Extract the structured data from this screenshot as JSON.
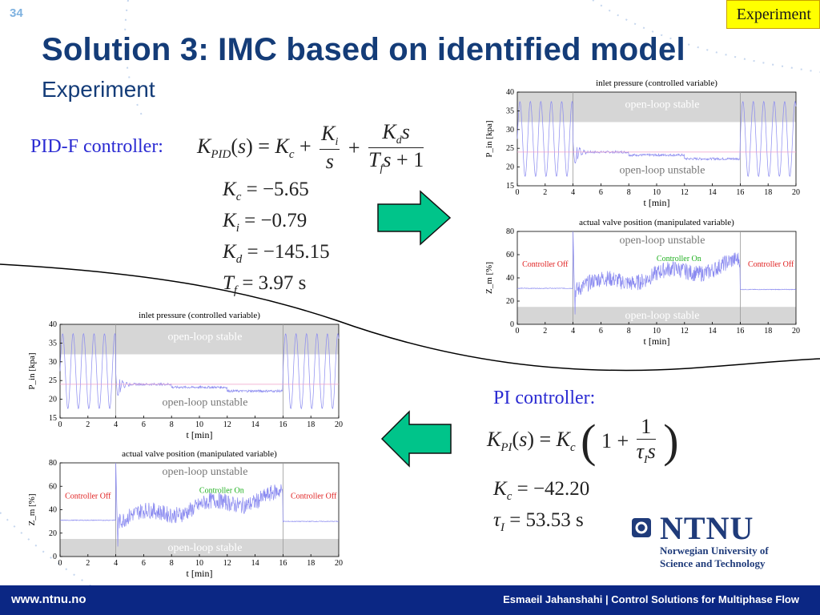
{
  "slide": {
    "number": "34",
    "tag": "Experiment",
    "title": "Solution 3: IMC based on identified model",
    "subtitle": "Experiment"
  },
  "pidf": {
    "label": "PID-F controller:",
    "formula_lhs": "K",
    "formula_lhs_sub": "PID",
    "params": [
      {
        "name": "K",
        "sub": "c",
        "value": "= −5.65"
      },
      {
        "name": "K",
        "sub": "i",
        "value": "= −0.79"
      },
      {
        "name": "K",
        "sub": "d",
        "value": "= −145.15"
      },
      {
        "name": "T",
        "sub": "f",
        "value": "= 3.97 s"
      }
    ]
  },
  "pi": {
    "label": "PI controller:",
    "params": [
      {
        "name": "K",
        "sub": "c",
        "value": "= −42.20"
      },
      {
        "name": "τ",
        "sub": "I",
        "value": "= 53.53 s"
      }
    ]
  },
  "logo": {
    "name": "NTNU",
    "line1": "Norwegian University of",
    "line2": "Science and Technology",
    "color": "#1f3b7a"
  },
  "footer": {
    "url": "www.ntnu.no",
    "right": "Esmaeil Jahanshahi  |  Control Solutions for Multiphase Flow"
  },
  "colors": {
    "title": "#143c78",
    "arrow_fill": "#00c48a",
    "controller_off": "#e02020",
    "controller_on": "#20b020",
    "band": "#d6d6d6",
    "series": "#8a8af0",
    "setpoint": "#f0a0c8"
  },
  "chart_data": [
    {
      "type": "line",
      "panel": "PID-F pressure",
      "title": "inlet pressure (controlled variable)",
      "xlabel": "t [min]",
      "ylabel": "P_in [kpa]",
      "xlim": [
        0,
        20
      ],
      "ylim": [
        15,
        40
      ],
      "xticks": [
        0,
        2,
        4,
        6,
        8,
        10,
        12,
        14,
        16,
        18,
        20
      ],
      "yticks": [
        15,
        20,
        25,
        30,
        35,
        40
      ],
      "annotations": [
        {
          "text": "open-loop stable"
        },
        {
          "text": "open-loop unstable"
        }
      ],
      "band": [
        32,
        40
      ],
      "controller_on": [
        4,
        16
      ]
    },
    {
      "type": "line",
      "panel": "PID-F valve",
      "title": "actual valve position (manipulated variable)",
      "xlabel": "t [min]",
      "ylabel": "Z_m [%]",
      "xlim": [
        0,
        20
      ],
      "ylim": [
        0,
        80
      ],
      "xticks": [
        0,
        2,
        4,
        6,
        8,
        10,
        12,
        14,
        16,
        18,
        20
      ],
      "yticks": [
        0,
        20,
        40,
        60,
        80
      ],
      "annotations": [
        {
          "text": "open-loop unstable"
        },
        {
          "text": "open-loop stable"
        },
        {
          "text": "Controller Off"
        },
        {
          "text": "Controller On"
        },
        {
          "text": "Controller Off"
        }
      ],
      "band": [
        0,
        15
      ],
      "controller_on": [
        4,
        16
      ]
    },
    {
      "type": "line",
      "panel": "PI pressure",
      "title": "inlet pressure (controlled variable)",
      "xlabel": "t [min]",
      "ylabel": "P_in [kpa]",
      "xlim": [
        0,
        20
      ],
      "ylim": [
        15,
        40
      ],
      "xticks": [
        0,
        2,
        4,
        6,
        8,
        10,
        12,
        14,
        16,
        18,
        20
      ],
      "yticks": [
        15,
        20,
        25,
        30,
        35,
        40
      ],
      "annotations": [
        {
          "text": "open-loop stable"
        },
        {
          "text": "open-loop unstable"
        }
      ],
      "band": [
        32,
        40
      ],
      "controller_on": [
        4,
        16
      ]
    },
    {
      "type": "line",
      "panel": "PI valve",
      "title": "actual valve position (manipulated variable)",
      "xlabel": "t [min]",
      "ylabel": "Z_m [%]",
      "xlim": [
        0,
        20
      ],
      "ylim": [
        0,
        80
      ],
      "xticks": [
        0,
        2,
        4,
        6,
        8,
        10,
        12,
        14,
        16,
        18,
        20
      ],
      "yticks": [
        0,
        20,
        40,
        60,
        80
      ],
      "annotations": [
        {
          "text": "open-loop unstable"
        },
        {
          "text": "open-loop stable"
        },
        {
          "text": "Controller Off"
        },
        {
          "text": "Controller On"
        },
        {
          "text": "Controller Off"
        }
      ],
      "band": [
        0,
        15
      ],
      "controller_on": [
        4,
        16
      ]
    }
  ]
}
